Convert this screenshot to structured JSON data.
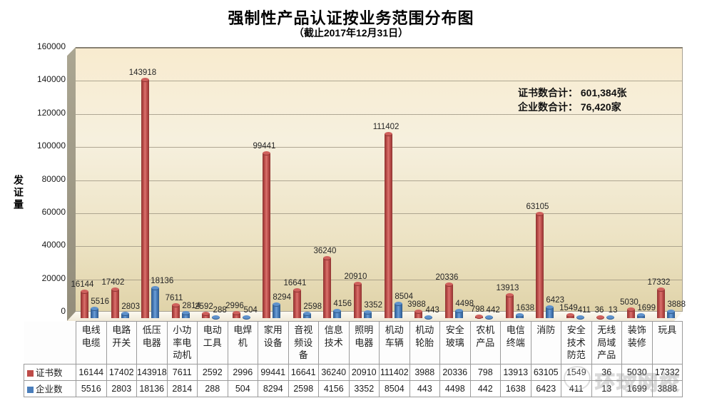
{
  "title": "强制性产品认证按业务范围分布图",
  "subtitle": "（截止2017年12月31日）",
  "y_axis_title": "发证量",
  "summary": {
    "line1": "证书数合计： 601,384张",
    "line2": "企业数合计： 76,420家"
  },
  "watermark_text": "环球网校",
  "chart_data": {
    "type": "bar",
    "title": "强制性产品认证按业务范围分布图",
    "subtitle": "（截止2017年12月31日）",
    "categories": [
      "电线电缆",
      "电路开关",
      "低压电器",
      "小功率电动机",
      "电动工具",
      "电焊机",
      "家用设备",
      "音视频设备",
      "信息技术",
      "照明电器",
      "机动车辆",
      "机动轮胎",
      "安全玻璃",
      "农机产品",
      "电信终端",
      "消防",
      "安全技术防范",
      "无线局域产品",
      "装饰装修",
      "玩具"
    ],
    "series": [
      {
        "name": "证书数",
        "color": "#BE4B48",
        "values": [
          16144,
          17402,
          143918,
          7611,
          2592,
          2996,
          99441,
          16641,
          36240,
          20910,
          111402,
          3988,
          20336,
          798,
          13913,
          63105,
          1549,
          36,
          5030,
          17332
        ]
      },
      {
        "name": "企业数",
        "color": "#4A7EBB",
        "values": [
          5516,
          2803,
          18136,
          2814,
          288,
          504,
          8294,
          2598,
          4156,
          3352,
          8504,
          443,
          4498,
          442,
          1638,
          6423,
          411,
          13,
          1699,
          3888
        ]
      }
    ],
    "xlabel": "",
    "ylabel": "发证量",
    "ylim": [
      0,
      160000
    ],
    "yticks": [
      0,
      20000,
      40000,
      60000,
      80000,
      100000,
      120000,
      140000,
      160000
    ],
    "grid": true,
    "data_labels": true,
    "legend_position": "table-left",
    "totals": {
      "证书数": "601,384",
      "企业数": "76,420"
    }
  }
}
